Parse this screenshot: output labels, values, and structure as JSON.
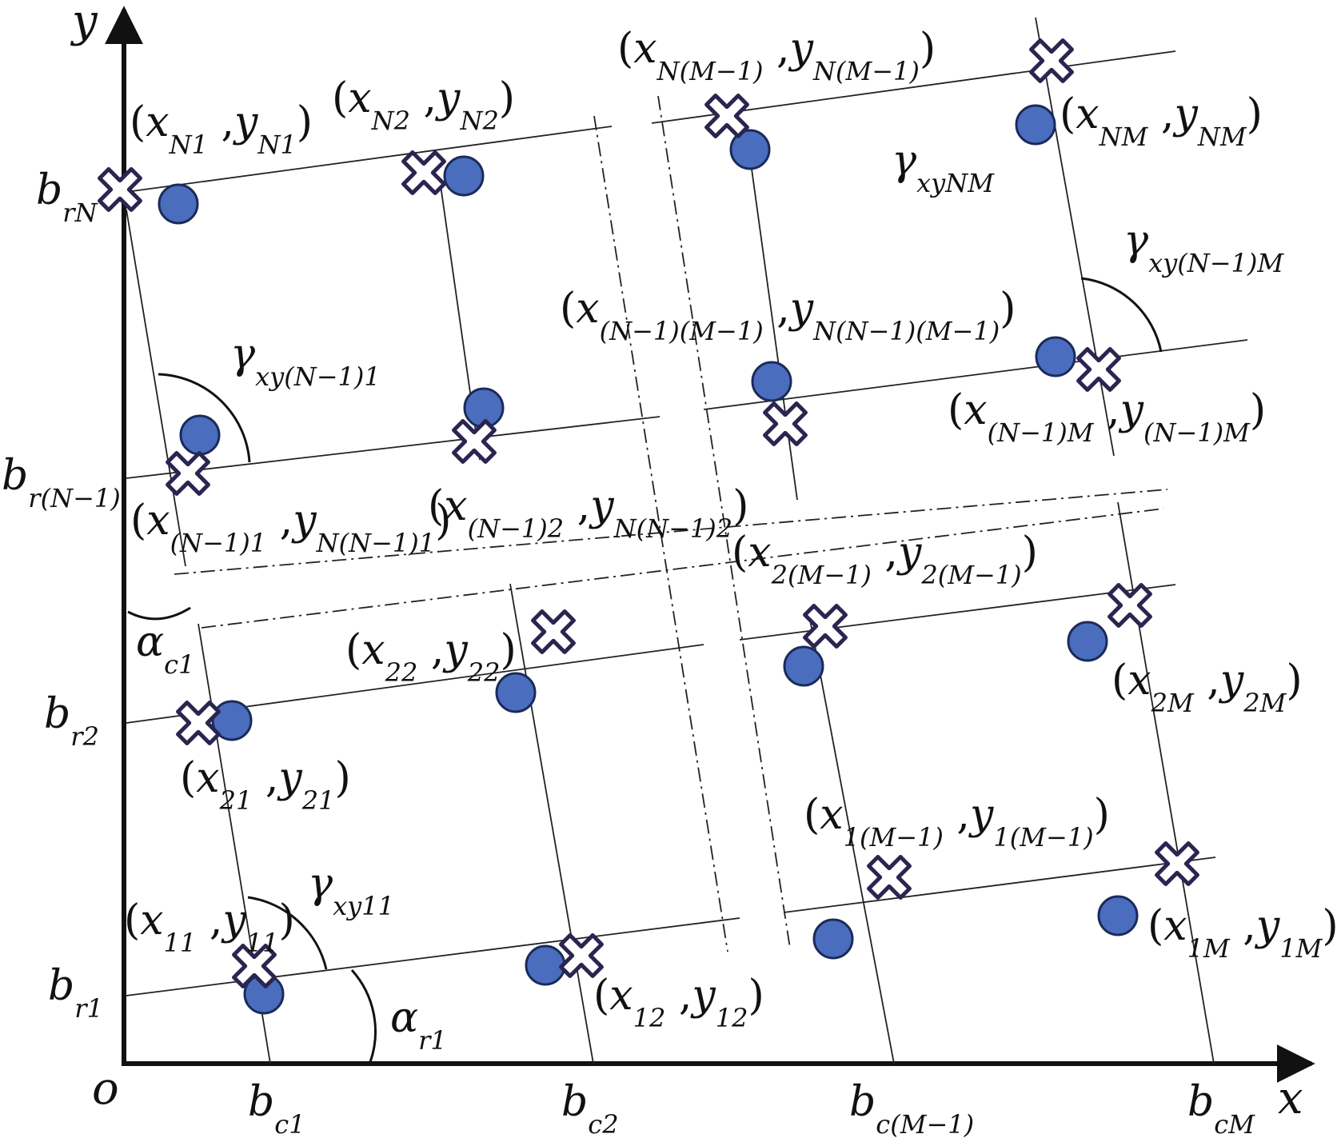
{
  "axes": {
    "x_label": "x",
    "y_label": "y",
    "origin_label": "o"
  },
  "column_labels": [
    {
      "base": "b",
      "sub": "c1"
    },
    {
      "base": "b",
      "sub": "c2"
    },
    {
      "base": "b",
      "sub": "c(M−1)"
    },
    {
      "base": "b",
      "sub": "cM"
    }
  ],
  "row_labels": [
    {
      "base": "b",
      "sub": "r1"
    },
    {
      "base": "b",
      "sub": "r2"
    },
    {
      "base": "b",
      "sub": "r(N−1)"
    },
    {
      "base": "b",
      "sub": "rN"
    }
  ],
  "point_labels": [
    {
      "x": "x",
      "xs": "11",
      "y": "y",
      "ys": "11"
    },
    {
      "x": "x",
      "xs": "12",
      "y": "y",
      "ys": "12"
    },
    {
      "x": "x",
      "xs": "1(M−1)",
      "y": "y",
      "ys": "1(M−1)"
    },
    {
      "x": "x",
      "xs": "1M",
      "y": "y",
      "ys": "1M"
    },
    {
      "x": "x",
      "xs": "21",
      "y": "y",
      "ys": "21"
    },
    {
      "x": "x",
      "xs": "22",
      "y": "y",
      "ys": "22"
    },
    {
      "x": "x",
      "xs": "2(M−1)",
      "y": "y",
      "ys": "2(M−1)"
    },
    {
      "x": "x",
      "xs": "2M",
      "y": "y",
      "ys": "2M"
    },
    {
      "x": "x",
      "xs": "(N−1)1",
      "y": "y",
      "ys": "N(N−1)1"
    },
    {
      "x": "x",
      "xs": "(N−1)2",
      "y": "y",
      "ys": "N(N−1)2"
    },
    {
      "x": "x",
      "xs": "(N−1)(M−1)",
      "y": "y",
      "ys": "N(N−1)(M−1)"
    },
    {
      "x": "x",
      "xs": "(N−1)M",
      "y": "y",
      "ys": "(N−1)M"
    },
    {
      "x": "x",
      "xs": "N1",
      "y": "y",
      "ys": "N1"
    },
    {
      "x": "x",
      "xs": "N2",
      "y": "y",
      "ys": "N2"
    },
    {
      "x": "x",
      "xs": "N(M−1)",
      "y": "y",
      "ys": "N(M−1)"
    },
    {
      "x": "x",
      "xs": "NM",
      "y": "y",
      "ys": "NM"
    }
  ],
  "angle_labels": [
    {
      "base": "α",
      "sub": "r1"
    },
    {
      "base": "α",
      "sub": "c1"
    },
    {
      "base": "γ",
      "sub": "xy11"
    },
    {
      "base": "γ",
      "sub": "xy(N−1)1"
    },
    {
      "base": "γ",
      "sub": "xyNM"
    },
    {
      "base": "γ",
      "sub": "xy(N−1)M"
    }
  ],
  "colors": {
    "stroke": "#111111",
    "dot_fill": "#4a6dbd",
    "dot_stroke": "#1b2a5a",
    "cross_fill": "#ffffff",
    "cross_stroke": "#2a2550"
  }
}
